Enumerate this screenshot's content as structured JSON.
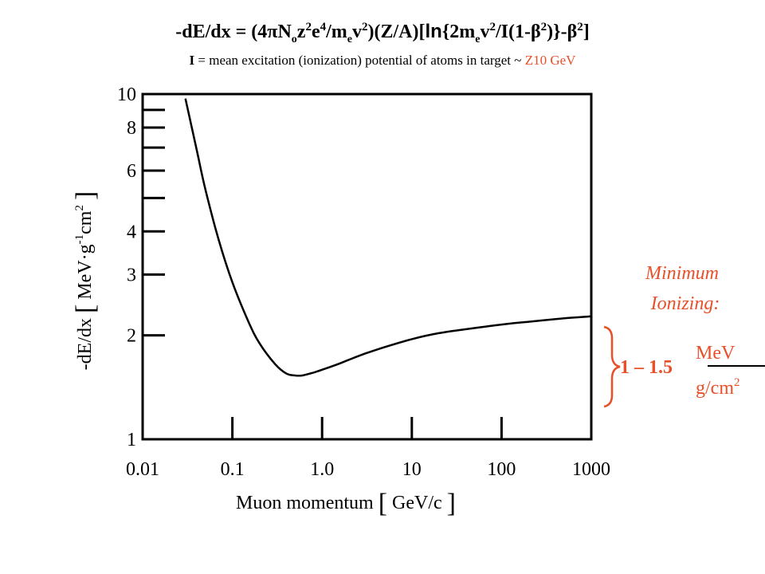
{
  "formula": {
    "p1": "-dE/dx = (4",
    "pi": "π",
    "N": "N",
    "o": "o",
    "z": "z",
    "two_a": "2",
    "e": "e",
    "four": "4",
    "slash_m": "/m",
    "e_sub": "e",
    "v": "v",
    "two_b": "2",
    "mid": ")(Z/A)[",
    "ln": "ln",
    "p2": "{2m",
    "e_sub2": "e",
    "v2": "v",
    "two_c": "2",
    "p3": "/I(1-",
    "beta1": "β",
    "two_d": "2",
    "p4": ")}-",
    "beta2": "β",
    "two_e": "2",
    "p5": "]"
  },
  "subtitle": {
    "i_label": "I",
    "text": " = mean excitation (ionization) potential of atoms in target ~ ",
    "highlight": "Z10 GeV"
  },
  "colors": {
    "accent": "#e8502a",
    "axis": "#000000"
  },
  "annotation": {
    "line1": "Minimum",
    "line2": "Ionizing:",
    "range": "1 – 1.5",
    "unit_num": "MeV",
    "unit_den": "g/cm",
    "unit_exp": "2"
  },
  "chart_data": {
    "type": "line",
    "x_scale": "log",
    "y_scale": "log",
    "xlim": [
      0.01,
      1000
    ],
    "ylim": [
      1,
      10
    ],
    "x_ticks": [
      "0.01",
      "0.1",
      "1.0",
      "10",
      "100",
      "1000"
    ],
    "x_tick_values": [
      0.01,
      0.1,
      1,
      10,
      100,
      1000
    ],
    "y_tick_labels": [
      {
        "label": "1",
        "value": 1
      },
      {
        "label": "2",
        "value": 2
      },
      {
        "label": "3",
        "value": 3
      },
      {
        "label": "4",
        "value": 4
      },
      {
        "label": "6",
        "value": 6
      },
      {
        "label": "8",
        "value": 8
      },
      {
        "label": "10",
        "value": 10
      }
    ],
    "y_minor_ticks": [
      5,
      7,
      9
    ],
    "xlabel": {
      "text": "Muon momentum ",
      "lb": "[",
      "mid": " GeV/c ",
      "rb": "]"
    },
    "ylabel": {
      "a": "-dE/dx ",
      "lb": "[",
      "b": " MeV·g",
      "sup": "-1",
      "c": "cm",
      "sup2": "2",
      "d": " ",
      "rb": "]"
    },
    "series": [
      {
        "x": [
          0.03,
          0.04,
          0.05,
          0.07,
          0.1,
          0.15,
          0.2,
          0.3,
          0.4,
          0.5,
          0.6,
          0.8,
          1,
          1.5,
          2,
          3,
          5,
          10,
          20,
          50,
          100,
          200,
          500,
          1000
        ],
        "y": [
          9.7,
          6.9,
          5.3,
          3.8,
          2.85,
          2.2,
          1.9,
          1.65,
          1.55,
          1.53,
          1.53,
          1.56,
          1.59,
          1.65,
          1.7,
          1.77,
          1.85,
          1.95,
          2.03,
          2.1,
          2.15,
          2.19,
          2.24,
          2.27
        ]
      }
    ]
  }
}
